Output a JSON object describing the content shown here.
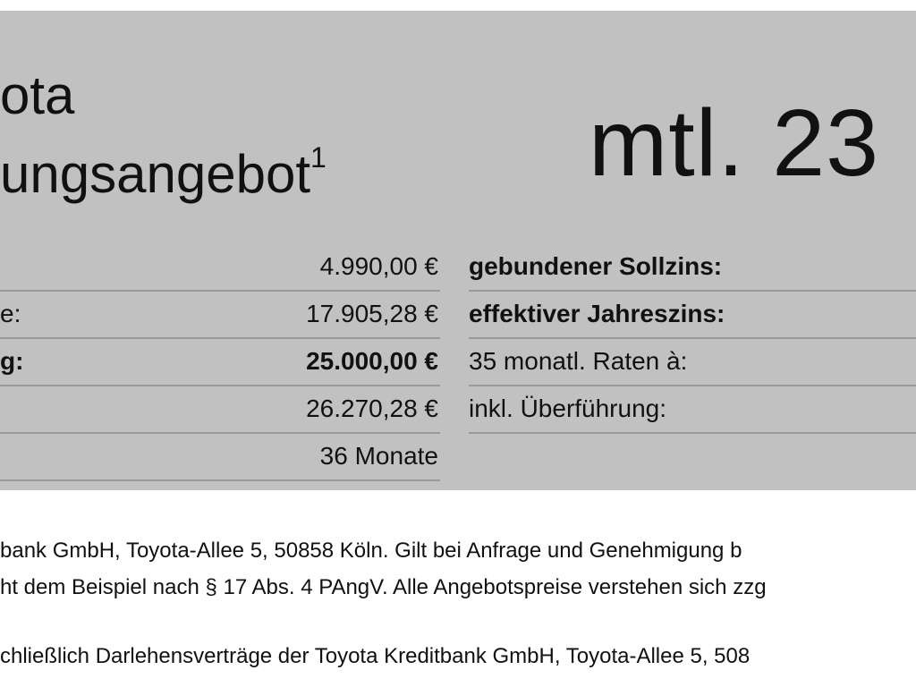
{
  "header": {
    "title_line_1": "ota",
    "title_line_2": "ungsangebot",
    "footnote_mark": "1",
    "price": "mtl. 23"
  },
  "table": {
    "left_rows": [
      {
        "value": "4.990,00 €"
      },
      {
        "label": "e:",
        "value": "17.905,28 €"
      },
      {
        "label": "g:",
        "value": "25.000,00 €",
        "bold": true
      },
      {
        "value": "26.270,28 €"
      },
      {
        "value": "36 Monate"
      }
    ],
    "right_rows": [
      {
        "label": "gebundener Sollzins:",
        "bold": true
      },
      {
        "label": "effektiver Jahreszins:",
        "bold": true
      },
      {
        "label": "35 monatl. Raten à:"
      },
      {
        "label": "inkl. Überführung:"
      }
    ]
  },
  "footnotes": [
    "bank GmbH, Toyota-Allee 5, 50858 Köln. Gilt bei Anfrage und Genehmigung b",
    "ht dem Beispiel nach § 17 Abs. 4 PAngV. Alle Angebotspreise verstehen sich zzg",
    "chließlich Darlehensverträge der Toyota Kreditbank GmbH, Toyota-Allee 5, 508"
  ]
}
